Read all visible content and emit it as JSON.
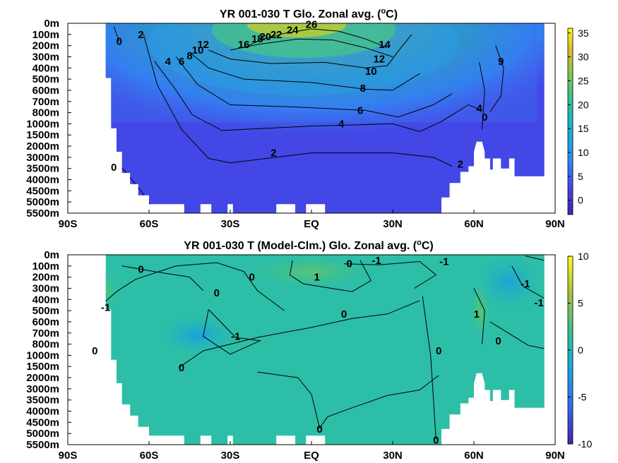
{
  "chart_data": [
    {
      "type": "heatmap",
      "title": "YR 001-030 T Glo. Zonal avg. (",
      "title_superscript": "o",
      "title_end": "C)",
      "x_tick_labels": [
        "90S",
        "60S",
        "30S",
        "EQ",
        "30N",
        "60N",
        "90N"
      ],
      "x_tick_values": [
        -90,
        -60,
        -30,
        0,
        30,
        60,
        90
      ],
      "y_tick_labels": [
        "0m",
        "100m",
        "200m",
        "300m",
        "400m",
        "500m",
        "600m",
        "700m",
        "800m",
        "1000m",
        "1500m",
        "2000m",
        "3000m",
        "3500m",
        "4000m",
        "4500m",
        "5000m",
        "5500m"
      ],
      "colorbar": {
        "min": -3,
        "max": 36,
        "ticks": [
          0,
          5,
          10,
          15,
          20,
          25,
          30,
          35
        ],
        "tick_labels": [
          "0",
          "5",
          "10",
          "15",
          "20",
          "25",
          "30",
          "35"
        ]
      },
      "contour_labels": [
        {
          "text": "26",
          "lat": 0,
          "depth": 0.1
        },
        {
          "text": "24",
          "lat": -7,
          "depth": 0.6
        },
        {
          "text": "22",
          "lat": -13,
          "depth": 1.0
        },
        {
          "text": "20",
          "lat": -17,
          "depth": 1.2
        },
        {
          "text": "18",
          "lat": -20,
          "depth": 1.4
        },
        {
          "text": "16",
          "lat": -25,
          "depth": 1.9
        },
        {
          "text": "14",
          "lat": 27,
          "depth": 1.9
        },
        {
          "text": "12",
          "lat": 25,
          "depth": 3.2
        },
        {
          "text": "10",
          "lat": 22,
          "depth": 4.3
        },
        {
          "text": "12",
          "lat": -40,
          "depth": 1.9
        },
        {
          "text": "10",
          "lat": -42,
          "depth": 2.4
        },
        {
          "text": "8",
          "lat": -45,
          "depth": 2.9
        },
        {
          "text": "6",
          "lat": -48,
          "depth": 3.4
        },
        {
          "text": "9",
          "lat": 70,
          "depth": 3.4
        },
        {
          "text": "8",
          "lat": 19,
          "depth": 5.8
        },
        {
          "text": "6",
          "lat": 18,
          "depth": 7.8
        },
        {
          "text": "4",
          "lat": 11,
          "depth": 9.0
        },
        {
          "text": "4",
          "lat": -53,
          "depth": 3.4
        },
        {
          "text": "4",
          "lat": 62,
          "depth": 7.6
        },
        {
          "text": "2",
          "lat": -63,
          "depth": 1.0
        },
        {
          "text": "2",
          "lat": -14,
          "depth": 11.6
        },
        {
          "text": "2",
          "lat": 55,
          "depth": 12.6
        },
        {
          "text": "0",
          "lat": -71,
          "depth": 1.6
        },
        {
          "text": "0",
          "lat": -73,
          "depth": 12.9
        },
        {
          "text": "0",
          "lat": 64,
          "depth": 8.4
        }
      ]
    },
    {
      "type": "heatmap",
      "title": "YR 001-030 T (Model-Clm.) Glo. Zonal avg. (",
      "title_superscript": "o",
      "title_end": "C)",
      "x_tick_labels": [
        "90S",
        "60S",
        "30S",
        "EQ",
        "30N",
        "60N",
        "90N"
      ],
      "x_tick_values": [
        -90,
        -60,
        -30,
        0,
        30,
        60,
        90
      ],
      "y_tick_labels": [
        "0m",
        "100m",
        "200m",
        "300m",
        "400m",
        "500m",
        "600m",
        "700m",
        "800m",
        "1000m",
        "1500m",
        "2000m",
        "3000m",
        "3500m",
        "4000m",
        "4500m",
        "5000m",
        "5500m"
      ],
      "colorbar": {
        "min": -10,
        "max": 10,
        "ticks": [
          10,
          5,
          0,
          -5,
          -10
        ],
        "tick_labels": [
          "10",
          "5",
          "0",
          "-5",
          "-10"
        ]
      },
      "contour_labels": [
        {
          "text": "0",
          "lat": -63,
          "depth": 1.3
        },
        {
          "text": "0",
          "lat": -35,
          "depth": 3.4
        },
        {
          "text": "0",
          "lat": -22,
          "depth": 2.0
        },
        {
          "text": "1",
          "lat": 2,
          "depth": 2.0
        },
        {
          "text": "0",
          "lat": 14,
          "depth": 0.8
        },
        {
          "text": "-1",
          "lat": 24,
          "depth": 0.5
        },
        {
          "text": "-1",
          "lat": 49,
          "depth": 0.6
        },
        {
          "text": "-1",
          "lat": 79,
          "depth": 2.6
        },
        {
          "text": "-1",
          "lat": 84,
          "depth": 4.3
        },
        {
          "text": "-1",
          "lat": -76,
          "depth": 4.7
        },
        {
          "text": "-1",
          "lat": -28,
          "depth": 7.3
        },
        {
          "text": "0",
          "lat": 12,
          "depth": 5.3
        },
        {
          "text": "1",
          "lat": 61,
          "depth": 5.3
        },
        {
          "text": "0",
          "lat": 69,
          "depth": 7.7
        },
        {
          "text": "0",
          "lat": -80,
          "depth": 8.6
        },
        {
          "text": "0",
          "lat": -48,
          "depth": 10.1
        },
        {
          "text": "0",
          "lat": 47,
          "depth": 8.6
        },
        {
          "text": "0",
          "lat": 3,
          "depth": 15.6
        },
        {
          "text": "0",
          "lat": 46,
          "depth": 16.6
        }
      ]
    }
  ]
}
